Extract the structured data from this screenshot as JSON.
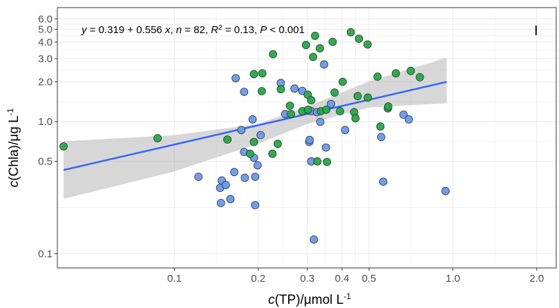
{
  "chart_data": {
    "type": "scatter",
    "x_scale": "log",
    "y_scale": "log",
    "xlim": [
      0.038,
      2.35
    ],
    "ylim": [
      0.078,
      7.3
    ],
    "grid": true,
    "x_ticks": [
      {
        "value": 0.1,
        "label": "0.1"
      },
      {
        "value": 0.2,
        "label": "0.2"
      },
      {
        "value": 0.3,
        "label": "0.3"
      },
      {
        "value": 0.4,
        "label": "0.4"
      },
      {
        "value": 0.5,
        "label": "0.5"
      },
      {
        "value": 1.0,
        "label": "1.0"
      },
      {
        "value": 2.0,
        "label": "2.0"
      }
    ],
    "y_ticks": [
      {
        "value": 0.1,
        "label": "0.1"
      },
      {
        "value": 0.5,
        "label": "0.5"
      },
      {
        "value": 1.0,
        "label": "1.0"
      },
      {
        "value": 2.0,
        "label": "2.0"
      },
      {
        "value": 3.0,
        "label": "3.0"
      },
      {
        "value": 4.0,
        "label": "4.0"
      },
      {
        "value": 5.0,
        "label": "5.0"
      },
      {
        "value": 6.0,
        "label": "6.0"
      }
    ],
    "xlabel": {
      "prefix": "c",
      "rest": "(TP)/μmol L",
      "sup": "-1"
    },
    "ylabel": {
      "prefix": "c",
      "rest": "(Chla)/μg L",
      "sup": "-1"
    },
    "annotation": {
      "y_var": "y",
      "equation_middle": " = 0.319 + 0.556 ",
      "x_var": "x",
      "sep1": ", ",
      "n_var": "n",
      "n_text": " = 82, ",
      "r2_var": "R",
      "r2_sup": "2",
      "r2_text": " = 0.13, ",
      "p_var": "P",
      "p_text": " < 0.001"
    },
    "panel_label": "I",
    "colors": {
      "blue_points": "#6699ee",
      "green_points": "#22aa44",
      "fit_line": "#3366ff",
      "ribbon": "#bdbdbd",
      "grid": "#ebebeb",
      "point_stroke": "#333333"
    },
    "fit_line": {
      "x": [
        0.04,
        0.95
      ],
      "y": [
        0.43,
        2.0
      ]
    },
    "confidence_band": {
      "x": [
        0.04,
        0.1,
        0.2,
        0.3,
        0.5,
        0.95
      ],
      "y_lower": [
        0.26,
        0.42,
        0.68,
        0.96,
        1.28,
        1.38
      ],
      "y_upper": [
        0.71,
        0.79,
        0.96,
        1.3,
        2.02,
        3.05
      ]
    },
    "series": [
      {
        "color_key": "blue_points",
        "points": [
          {
            "x": 0.122,
            "y": 0.382
          },
          {
            "x": 0.148,
            "y": 0.358
          },
          {
            "x": 0.146,
            "y": 0.315
          },
          {
            "x": 0.153,
            "y": 0.331
          },
          {
            "x": 0.147,
            "y": 0.242
          },
          {
            "x": 0.159,
            "y": 0.259
          },
          {
            "x": 0.164,
            "y": 0.415
          },
          {
            "x": 0.179,
            "y": 0.376
          },
          {
            "x": 0.195,
            "y": 0.382
          },
          {
            "x": 0.178,
            "y": 0.589
          },
          {
            "x": 0.193,
            "y": 0.533
          },
          {
            "x": 0.199,
            "y": 0.467
          },
          {
            "x": 0.195,
            "y": 0.233
          },
          {
            "x": 0.174,
            "y": 0.864
          },
          {
            "x": 0.191,
            "y": 1.04
          },
          {
            "x": 0.204,
            "y": 0.791
          },
          {
            "x": 0.166,
            "y": 2.13
          },
          {
            "x": 0.178,
            "y": 1.68
          },
          {
            "x": 0.241,
            "y": 1.96
          },
          {
            "x": 0.25,
            "y": 1.14
          },
          {
            "x": 0.27,
            "y": 1.78
          },
          {
            "x": 0.288,
            "y": 1.71
          },
          {
            "x": 0.305,
            "y": 0.701
          },
          {
            "x": 0.306,
            "y": 0.726
          },
          {
            "x": 0.31,
            "y": 1.2
          },
          {
            "x": 0.325,
            "y": 1.18
          },
          {
            "x": 0.334,
            "y": 0.995
          },
          {
            "x": 0.35,
            "y": 0.637
          },
          {
            "x": 0.345,
            "y": 2.71
          },
          {
            "x": 0.365,
            "y": 1.36
          },
          {
            "x": 0.41,
            "y": 0.864
          },
          {
            "x": 0.317,
            "y": 0.128
          },
          {
            "x": 0.31,
            "y": 0.5
          },
          {
            "x": 0.553,
            "y": 0.764
          },
          {
            "x": 0.562,
            "y": 0.351
          },
          {
            "x": 0.665,
            "y": 1.13
          },
          {
            "x": 0.695,
            "y": 1.04
          },
          {
            "x": 0.941,
            "y": 0.298
          }
        ]
      },
      {
        "color_key": "green_points",
        "points": [
          {
            "x": 0.04,
            "y": 0.649
          },
          {
            "x": 0.087,
            "y": 0.748
          },
          {
            "x": 0.155,
            "y": 0.731
          },
          {
            "x": 0.193,
            "y": 0.701
          },
          {
            "x": 0.187,
            "y": 0.571
          },
          {
            "x": 0.225,
            "y": 0.571
          },
          {
            "x": 0.235,
            "y": 0.679
          },
          {
            "x": 0.193,
            "y": 2.29
          },
          {
            "x": 0.207,
            "y": 2.32
          },
          {
            "x": 0.206,
            "y": 1.7
          },
          {
            "x": 0.226,
            "y": 3.24
          },
          {
            "x": 0.241,
            "y": 1.76
          },
          {
            "x": 0.26,
            "y": 1.32
          },
          {
            "x": 0.262,
            "y": 1.14
          },
          {
            "x": 0.288,
            "y": 1.2
          },
          {
            "x": 0.297,
            "y": 3.8
          },
          {
            "x": 0.301,
            "y": 1.6
          },
          {
            "x": 0.302,
            "y": 1.23
          },
          {
            "x": 0.31,
            "y": 1.45
          },
          {
            "x": 0.315,
            "y": 3.09
          },
          {
            "x": 0.32,
            "y": 4.46
          },
          {
            "x": 0.333,
            "y": 3.59
          },
          {
            "x": 0.336,
            "y": 1.2
          },
          {
            "x": 0.351,
            "y": 1.23
          },
          {
            "x": 0.37,
            "y": 4.02
          },
          {
            "x": 0.376,
            "y": 1.66
          },
          {
            "x": 0.393,
            "y": 1.2
          },
          {
            "x": 0.402,
            "y": 2.0
          },
          {
            "x": 0.43,
            "y": 4.75
          },
          {
            "x": 0.442,
            "y": 1.18
          },
          {
            "x": 0.447,
            "y": 1.06
          },
          {
            "x": 0.455,
            "y": 1.56
          },
          {
            "x": 0.46,
            "y": 4.24
          },
          {
            "x": 0.494,
            "y": 3.84
          },
          {
            "x": 0.495,
            "y": 1.52
          },
          {
            "x": 0.536,
            "y": 2.19
          },
          {
            "x": 0.549,
            "y": 0.918
          },
          {
            "x": 0.584,
            "y": 1.26
          },
          {
            "x": 0.586,
            "y": 1.3
          },
          {
            "x": 0.624,
            "y": 2.32
          },
          {
            "x": 0.706,
            "y": 2.42
          },
          {
            "x": 0.761,
            "y": 2.17
          },
          {
            "x": 0.326,
            "y": 0.5
          },
          {
            "x": 0.353,
            "y": 0.495
          }
        ]
      }
    ]
  }
}
